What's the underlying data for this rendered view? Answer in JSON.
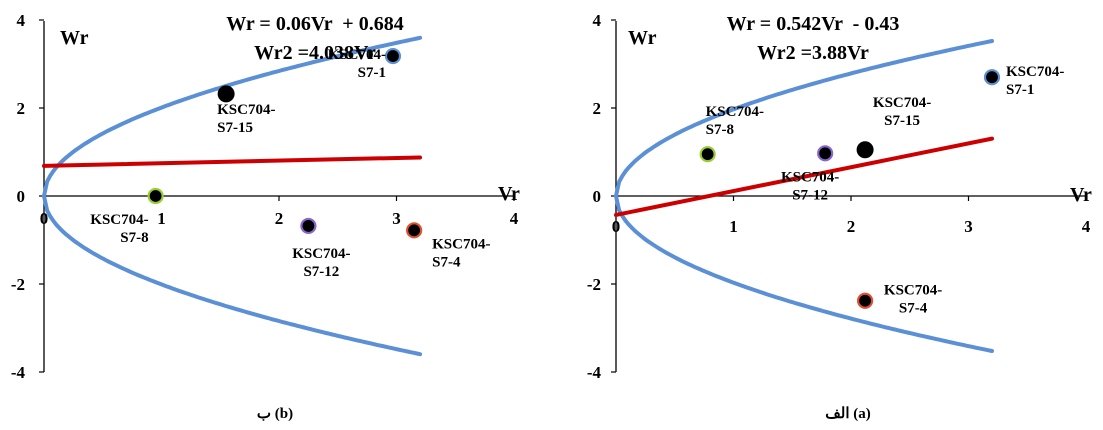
{
  "chart_data": [
    {
      "type": "scatter",
      "caption": "ب (b)",
      "ylabel": "Wr",
      "xlabel": "Vr",
      "xlim": [
        0,
        4
      ],
      "ylim": [
        -4,
        4
      ],
      "x_ticks": [
        "0",
        "1",
        "2",
        "3",
        "4"
      ],
      "y_ticks": [
        "4",
        "2",
        "0",
        "-2",
        "-4"
      ],
      "equations": [
        "Wr = 0.06Vr  + 0.684",
        "Wr2 =4.038Vr"
      ],
      "regression": {
        "slope": 0.06,
        "intercept": 0.684,
        "x_range": [
          0,
          3.2
        ],
        "color": "#cc0000"
      },
      "parabola": {
        "k": 4.038,
        "x_range": [
          0,
          3.2
        ],
        "color": "#5b8fd6"
      },
      "points": [
        {
          "label": [
            "KSC704-",
            "S7-1"
          ],
          "x": 2.97,
          "y": 3.18,
          "color": "#000000",
          "edge": "#5b8fd6"
        },
        {
          "label": [
            "KSC704-",
            "S7-15"
          ],
          "x": 1.55,
          "y": 2.32,
          "color": "#000000",
          "edge": "#000000"
        },
        {
          "label": [
            "KSC704-",
            "S7-8"
          ],
          "x": 0.95,
          "y": 0.0,
          "color": "#000000",
          "edge": "#9acd32"
        },
        {
          "label": [
            "KSC704-",
            "S7-12"
          ],
          "x": 2.25,
          "y": -0.68,
          "color": "#000000",
          "edge": "#8866cc"
        },
        {
          "label": [
            "KSC704-",
            "S7-4"
          ],
          "x": 3.15,
          "y": -0.78,
          "color": "#000000",
          "edge": "#e05030"
        }
      ]
    },
    {
      "type": "scatter",
      "caption": "الف (a)",
      "ylabel": "Wr",
      "xlabel": "Vr",
      "xlim": [
        0,
        4
      ],
      "ylim": [
        -4,
        4
      ],
      "x_ticks": [
        "0",
        "1",
        "2",
        "3",
        "4"
      ],
      "y_ticks": [
        "4",
        "2",
        "0",
        "-2",
        "-4"
      ],
      "equations": [
        "Wr = 0.542Vr  - 0.43",
        "Wr2 =3.88Vr"
      ],
      "regression": {
        "slope": 0.542,
        "intercept": -0.43,
        "x_range": [
          0,
          3.2
        ],
        "color": "#cc0000"
      },
      "parabola": {
        "k": 3.88,
        "x_range": [
          0,
          3.2
        ],
        "color": "#5b8fd6"
      },
      "points": [
        {
          "label": [
            "KSC704-",
            "S7-1"
          ],
          "x": 3.2,
          "y": 2.7,
          "color": "#000000",
          "edge": "#5b8fd6"
        },
        {
          "label": [
            "KSC704-",
            "S7-8"
          ],
          "x": 0.78,
          "y": 0.95,
          "color": "#000000",
          "edge": "#9acd32"
        },
        {
          "label": [
            "KSC704-",
            "S7-15"
          ],
          "x": 2.12,
          "y": 1.05,
          "color": "#000000",
          "edge": "#000000"
        },
        {
          "label": [
            "KSC704-",
            "S7-12"
          ],
          "x": 1.78,
          "y": 0.97,
          "color": "#000000",
          "edge": "#8866cc"
        },
        {
          "label": [
            "KSC704-",
            "S7-4"
          ],
          "x": 2.12,
          "y": -2.38,
          "color": "#000000",
          "edge": "#e05030"
        }
      ]
    }
  ]
}
